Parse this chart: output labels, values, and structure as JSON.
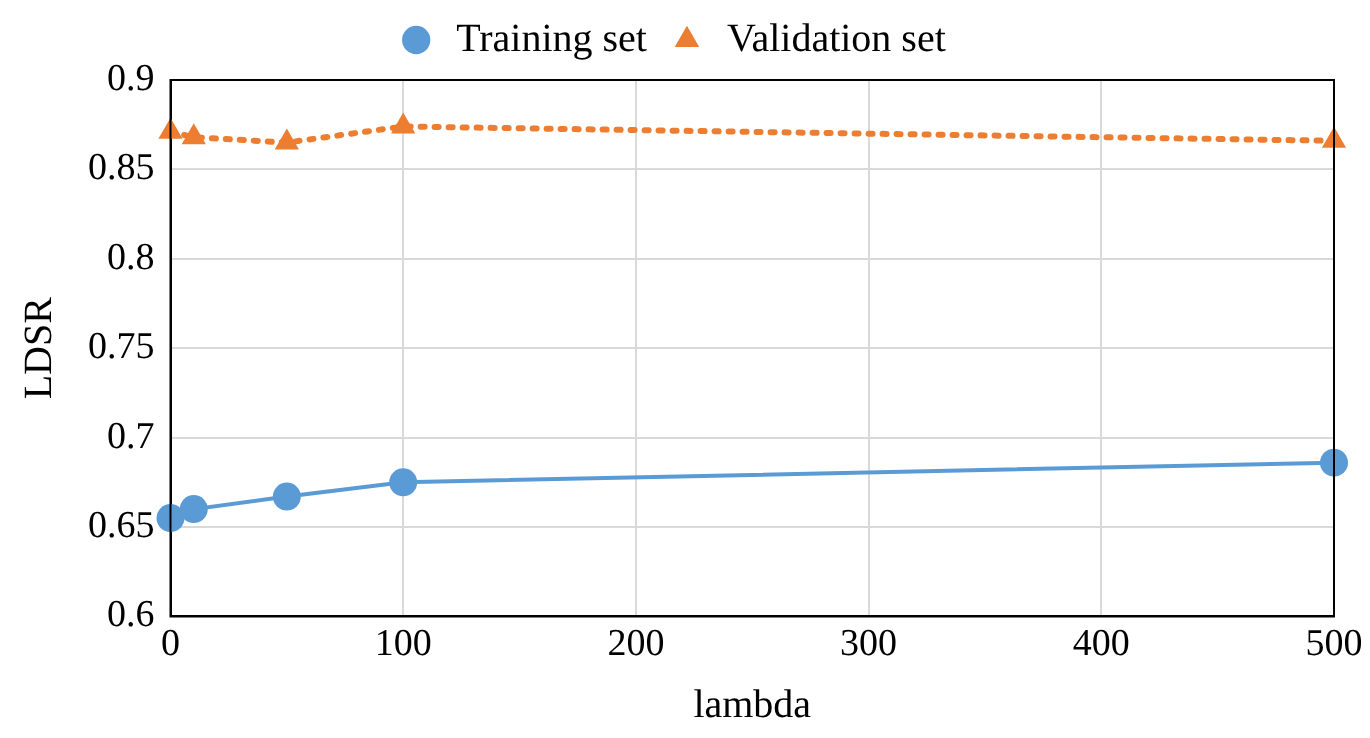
{
  "chart_data": {
    "type": "line",
    "xlabel": "lambda",
    "ylabel": "LDSR",
    "x": [
      0,
      10,
      50,
      100,
      500
    ],
    "series": [
      {
        "name": "Training set",
        "color": "#5b9bd5",
        "values": [
          0.655,
          0.66,
          0.667,
          0.675,
          0.686
        ],
        "marker": "circle",
        "line_style": "solid"
      },
      {
        "name": "Validation set",
        "color": "#ed7d31",
        "values": [
          0.871,
          0.868,
          0.865,
          0.874,
          0.866
        ],
        "marker": "triangle",
        "line_style": "dotted"
      }
    ],
    "xlim": [
      0,
      500
    ],
    "xticks": [
      0,
      100,
      200,
      300,
      400,
      500
    ],
    "ylim": [
      0.6,
      0.9
    ],
    "yticks": [
      0.6,
      0.65,
      0.7,
      0.75,
      0.8,
      0.85,
      0.9
    ],
    "grid": true,
    "legend": "top"
  }
}
